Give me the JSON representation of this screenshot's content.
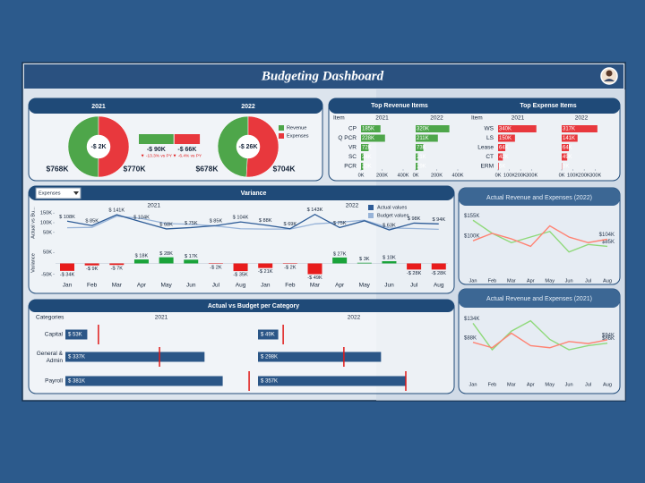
{
  "header": {
    "title": "Budgeting Dashboard"
  },
  "chart_data": [
    {
      "type": "donut",
      "categories": [
        "Revenue",
        "Expenses"
      ],
      "colors": [
        "#4ea64a",
        "#e8383d"
      ],
      "series": [
        {
          "name": "2021",
          "values": [
            768,
            770
          ],
          "value_labels": [
            "$768K",
            "$770K"
          ],
          "center_label": "-$ 2K"
        },
        {
          "name": "2022",
          "values": [
            678,
            704
          ],
          "value_labels": [
            "$678K",
            "$704K"
          ],
          "center_label": "-$ 26K"
        }
      ],
      "comparison": {
        "values": [
          -90,
          -66
        ],
        "value_labels": [
          "-$ 90K",
          "-$ 66K"
        ],
        "notes": [
          "▼ -13.3% vs PY",
          "▼ -6.4% vs PY"
        ],
        "colors": [
          "#4ea64a",
          "#e8383d"
        ]
      }
    },
    {
      "type": "bar",
      "title": "Top Revenue Items",
      "category_label": "Item",
      "categories": [
        "CP",
        "Q PCR",
        "VR",
        "SC",
        "PCR"
      ],
      "color": "#4ea64a",
      "series": [
        {
          "name": "2021",
          "values": [
            185,
            228,
            72,
            24,
            20
          ],
          "value_labels": [
            "185K",
            "228K",
            "72K",
            "24K",
            "20K"
          ]
        },
        {
          "name": "2022",
          "values": [
            320,
            211,
            73,
            21,
            19
          ],
          "value_labels": [
            "320K",
            "211K",
            "73K",
            "21K",
            "19K"
          ]
        }
      ],
      "xlim": [
        0,
        400
      ],
      "xticks": [
        {
          "value": 0,
          "label": "0K"
        },
        {
          "value": 200,
          "label": "200K"
        },
        {
          "value": 400,
          "label": "400K"
        }
      ]
    },
    {
      "type": "bar",
      "title": "Top Expense Items",
      "category_label": "Item",
      "categories": [
        "WS",
        "LS",
        "Lease",
        "CT",
        "ERM"
      ],
      "color": "#e8383d",
      "series": [
        {
          "name": "2021",
          "values": [
            340,
            150,
            64,
            42,
            6
          ],
          "value_labels": [
            "340K",
            "150K",
            "64K",
            "42K",
            "6K"
          ]
        },
        {
          "name": "2022",
          "values": [
            317,
            141,
            64,
            49,
            3
          ],
          "value_labels": [
            "317K",
            "141K",
            "64K",
            "49K",
            "3K"
          ]
        }
      ],
      "xlim": [
        0,
        350
      ],
      "xticks": [
        {
          "value": 0,
          "label": "0K"
        },
        {
          "value": 100,
          "label": "100K"
        },
        {
          "value": 200,
          "label": "200K"
        },
        {
          "value": 300,
          "label": "300K"
        }
      ]
    },
    {
      "type": "combo",
      "title": "Variance",
      "filter": "Expenses",
      "groups": [
        "2021",
        "2022"
      ],
      "categories": [
        "Jan",
        "Feb",
        "Mar",
        "Apr",
        "May",
        "Jun",
        "Jul",
        "Aug",
        "Jan",
        "Feb",
        "Mar",
        "Apr",
        "May",
        "Jun",
        "Jul",
        "Aug"
      ],
      "ylabel": "Actual vs Bu...",
      "y2label": "Variance",
      "ylim": [
        40,
        160
      ],
      "yticks": [
        {
          "value": 50,
          "label": "50K"
        },
        {
          "value": 100,
          "label": "100K"
        },
        {
          "value": 150,
          "label": "150K"
        }
      ],
      "y2lim": [
        -55,
        55
      ],
      "y2ticks": [
        {
          "value": 50,
          "label": "50K"
        },
        {
          "value": -50,
          "label": "-50K"
        }
      ],
      "series": [
        {
          "name": "Actual values",
          "type": "line",
          "color": "#2e5c97",
          "values": [
            108,
            85,
            141,
            104,
            68,
            75,
            85,
            104,
            88,
            69,
            143,
            75,
            110,
            63,
            98,
            94
          ],
          "value_labels": [
            "$ 108K",
            "$ 85K",
            "$ 141K",
            "$ 104K",
            "$ 68K",
            "$ 75K",
            "$ 85K",
            "$ 104K",
            "$ 88K",
            "$ 69K",
            "$ 143K",
            "$ 75K",
            null,
            "$ 63K",
            "$ 98K",
            "$ 94K"
          ]
        },
        {
          "name": "Budget values",
          "type": "line",
          "color": "#97b3d8",
          "values": [
            74,
            76,
            134,
            122,
            96,
            92,
            83,
            69,
            67,
            67,
            94,
            102,
            113,
            73,
            70,
            66
          ]
        },
        {
          "type": "bar",
          "axis": "y2",
          "color": "#1aa33a",
          "negative_color": "#e81c1c",
          "values": [
            -34,
            -9,
            -7,
            18,
            28,
            17,
            -2,
            -35,
            -21,
            -2,
            -49,
            27,
            3,
            10,
            -28,
            -28
          ],
          "value_labels": [
            "-$ 34K",
            "-$ 9K",
            "-$ 7K",
            "$ 18K",
            "$ 28K",
            "$ 17K",
            "-$ 2K",
            "-$ 35K",
            "-$ 21K",
            "-$ 2K",
            "-$ 49K",
            "$ 27K",
            "$ 3K",
            "$ 10K",
            "-$ 28K",
            "-$ 28K"
          ]
        }
      ]
    },
    {
      "type": "line",
      "title": "Actual Revenue and Expenses (2022)",
      "categories": [
        "Jan",
        "Feb",
        "Mar",
        "Apr",
        "May",
        "Jun",
        "Jul",
        "Aug"
      ],
      "ylim": [
        50,
        170
      ],
      "series": [
        {
          "color": "#8fd97a",
          "values": [
            155,
            120,
            95,
            110,
            125,
            70,
            90,
            85
          ],
          "value_labels": [
            "$155K",
            null,
            null,
            null,
            null,
            null,
            null,
            "$85K"
          ]
        },
        {
          "color": "#ff8373",
          "values": [
            100,
            120,
            105,
            85,
            140,
            110,
            95,
            104
          ],
          "value_labels": [
            "$100K",
            null,
            null,
            null,
            null,
            null,
            null,
            "$104K"
          ]
        }
      ]
    },
    {
      "type": "line",
      "title": "Actual Revenue and Expenses (2021)",
      "categories": [
        "Jan",
        "Feb",
        "Mar",
        "Apr",
        "May",
        "Jun",
        "Jul",
        "Aug"
      ],
      "ylim": [
        55,
        150
      ],
      "series": [
        {
          "color": "#8fd97a",
          "values": [
            134,
            70,
            115,
            140,
            95,
            70,
            80,
            86
          ],
          "value_labels": [
            "$134K",
            null,
            null,
            null,
            null,
            null,
            null,
            "$86K"
          ]
        },
        {
          "color": "#ff8373",
          "values": [
            88,
            75,
            110,
            80,
            75,
            90,
            85,
            94
          ],
          "value_labels": [
            "$88K",
            null,
            null,
            null,
            null,
            null,
            null,
            "$94K"
          ]
        }
      ]
    },
    {
      "type": "bullet",
      "title": "Actual vs Budget per Category",
      "category_label": "Categories",
      "categories": [
        "Capital",
        "General & Admin",
        "Payroll"
      ],
      "color": "#2b5687",
      "target_color": "#e01a1a",
      "xlim": [
        0,
        460
      ],
      "series": [
        {
          "name": "2021",
          "values": [
            53,
            337,
            381
          ],
          "value_labels": [
            "$ 53K",
            "$ 337K",
            "$ 381K"
          ],
          "targets": [
            80,
            228,
            445
          ]
        },
        {
          "name": "2022",
          "values": [
            49,
            298,
            357
          ],
          "value_labels": [
            "$ 49K",
            "$ 298K",
            "$ 357K"
          ],
          "targets": [
            61,
            208,
            358
          ]
        }
      ]
    }
  ]
}
